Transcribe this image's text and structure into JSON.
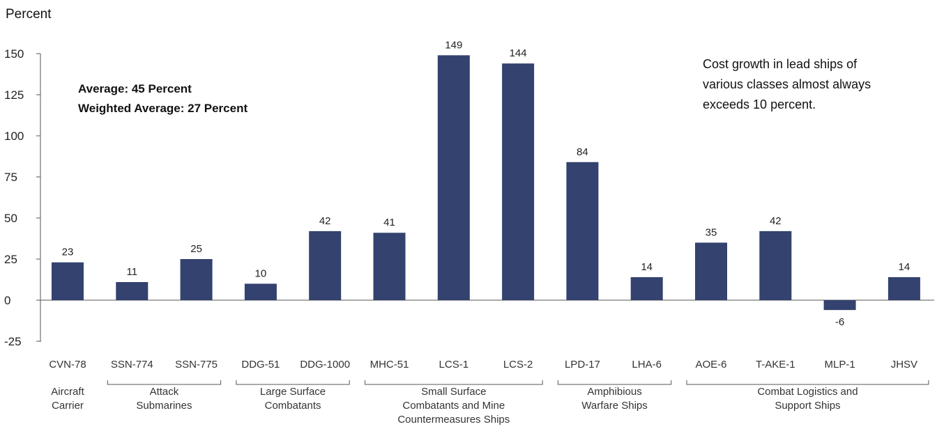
{
  "chart_data": {
    "type": "bar",
    "ylabel": "Percent",
    "ylim": [
      -25,
      150
    ],
    "yticks": [
      150,
      125,
      100,
      75,
      50,
      25,
      0,
      -25
    ],
    "grid": false,
    "bar_color": "#33426e",
    "categories": [
      "CVN-78",
      "SSN-774",
      "SSN-775",
      "DDG-51",
      "DDG-1000",
      "MHC-51",
      "LCS-1",
      "LCS-2",
      "LPD-17",
      "LHA-6",
      "AOE-6",
      "T-AKE-1",
      "MLP-1",
      "JHSV"
    ],
    "values": [
      23,
      11,
      25,
      10,
      42,
      41,
      149,
      144,
      84,
      14,
      35,
      42,
      -6,
      14
    ],
    "groups": [
      {
        "lines": [
          "Aircraft",
          "Carrier"
        ],
        "start": 0,
        "end": 0,
        "bracket": false
      },
      {
        "lines": [
          "Attack",
          "Submarines"
        ],
        "start": 1,
        "end": 2,
        "bracket": true
      },
      {
        "lines": [
          "Large Surface",
          "Combatants"
        ],
        "start": 3,
        "end": 4,
        "bracket": true
      },
      {
        "lines": [
          "Small Surface",
          "Combatants and Mine",
          "Countermeasures Ships"
        ],
        "start": 5,
        "end": 7,
        "bracket": true
      },
      {
        "lines": [
          "Amphibious",
          "Warfare Ships"
        ],
        "start": 8,
        "end": 9,
        "bracket": true
      },
      {
        "lines": [
          "Combat Logistics and",
          "Support Ships"
        ],
        "start": 10,
        "end": 13,
        "bracket": true
      }
    ],
    "annotations": {
      "average": "Average: 45 Percent",
      "weighted_average": "Weighted Average: 27 Percent",
      "note_lines": [
        "Cost growth in lead ships of",
        "various classes almost always",
        "exceeds 10 percent."
      ]
    }
  }
}
